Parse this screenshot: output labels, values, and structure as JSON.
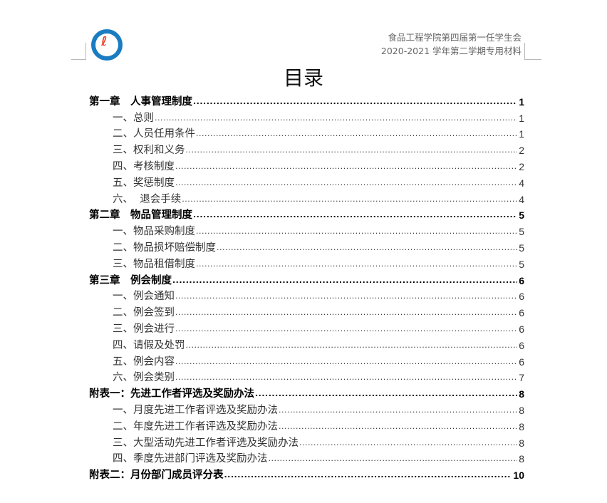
{
  "header": {
    "line1": "食品工程学院第四届第一任学生会",
    "line2": "2020-2021 学年第二学期专用材料"
  },
  "title": "目录",
  "toc": [
    {
      "label": "第一章　人事管理制度",
      "page": "1",
      "level": 1
    },
    {
      "label": "一、总则",
      "page": "1",
      "level": 2
    },
    {
      "label": "二、人员任用条件",
      "page": "1",
      "level": 2
    },
    {
      "label": "三、权利和义务",
      "page": "2",
      "level": 2
    },
    {
      "label": "四、考核制度",
      "page": "2",
      "level": 2
    },
    {
      "label": "五、奖惩制度",
      "page": "4",
      "level": 2
    },
    {
      "label": "六、  退会手续",
      "page": "4",
      "level": 2
    },
    {
      "label": "第二章　物品管理制度",
      "page": "5",
      "level": 1
    },
    {
      "label": "一、物品采购制度",
      "page": "5",
      "level": 2
    },
    {
      "label": "二、物品损坏赔偿制度",
      "page": "5",
      "level": 2
    },
    {
      "label": "三、物品租借制度",
      "page": "5",
      "level": 2
    },
    {
      "label": "第三章　例会制度",
      "page": "6",
      "level": 1
    },
    {
      "label": "一、例会通知",
      "page": "6",
      "level": 2
    },
    {
      "label": "二、例会签到",
      "page": "6",
      "level": 2
    },
    {
      "label": "三、例会进行",
      "page": "6",
      "level": 2
    },
    {
      "label": "四、请假及处罚",
      "page": "6",
      "level": 2
    },
    {
      "label": "五、例会内容",
      "page": "6",
      "level": 2
    },
    {
      "label": "六、例会类别",
      "page": "7",
      "level": 2
    },
    {
      "label": "附表一：先进工作者评选及奖励办法",
      "page": "8",
      "level": 1
    },
    {
      "label": "一、月度先进工作者评选及奖励办法",
      "page": "8",
      "level": 2
    },
    {
      "label": "二、年度先进工作者评选及奖励办法",
      "page": "8",
      "level": 2
    },
    {
      "label": "三、大型活动先进工作者评选及奖励办法",
      "page": "8",
      "level": 2
    },
    {
      "label": "四、季度先进部门评选及奖励办法",
      "page": "8",
      "level": 2
    },
    {
      "label": "附表二：月份部门成员评分表",
      "page": "10",
      "level": 1
    }
  ]
}
